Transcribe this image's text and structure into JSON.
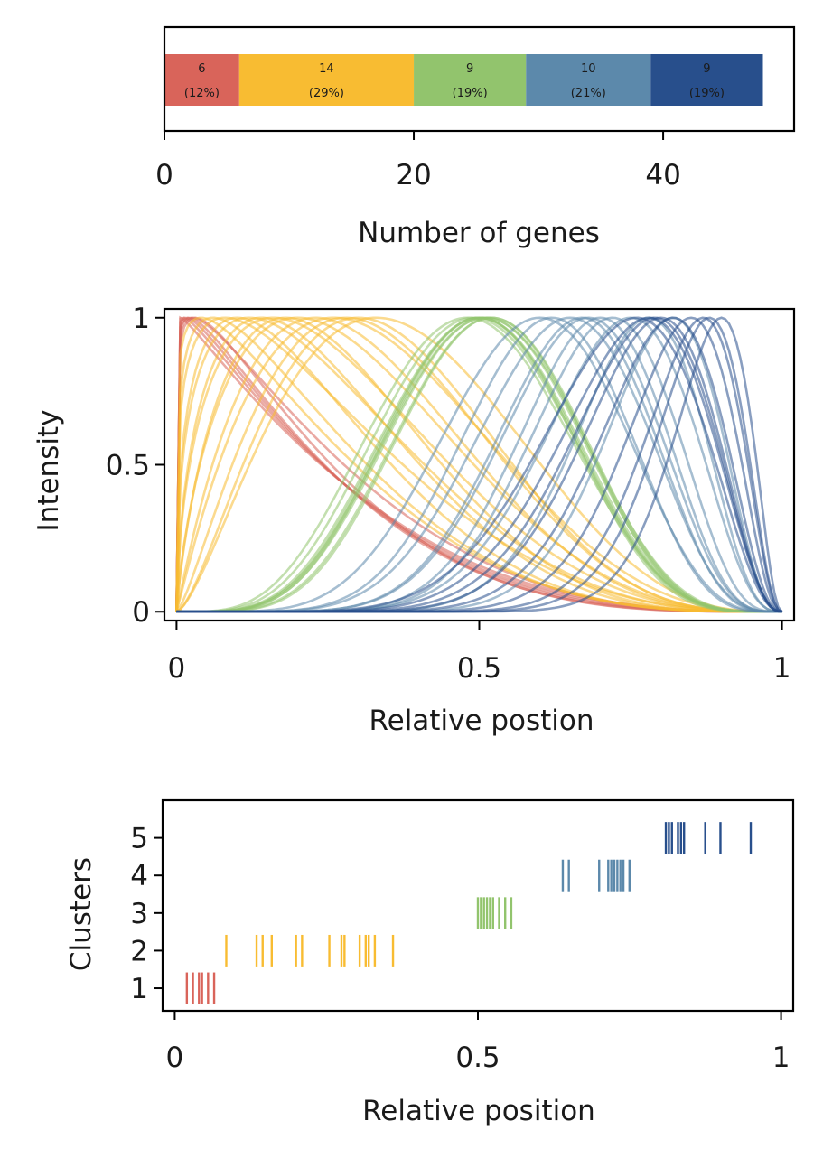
{
  "figure": {
    "panel_a": {
      "xlabel": "Number of genes",
      "ticks": [
        "0",
        "20",
        "40"
      ]
    },
    "panel_b": {
      "xlabel": "Relative postion",
      "ylabel": "Intensity",
      "xticks": [
        "0",
        "0.5",
        "1"
      ],
      "yticks": [
        "0",
        "0.5",
        "1"
      ]
    },
    "panel_c": {
      "xlabel": "Relative position",
      "ylabel": "Clusters",
      "xticks": [
        "0",
        "0.5",
        "1"
      ],
      "yticks": [
        "1",
        "2",
        "3",
        "4",
        "5"
      ]
    }
  },
  "chart_data": [
    {
      "type": "bar",
      "orientation": "horizontal-stacked",
      "xlabel": "Number of genes",
      "xlim": [
        0,
        50.5
      ],
      "xticks": [
        0,
        20,
        40
      ],
      "segments": [
        {
          "value": 6,
          "count_label": "6",
          "pct_label": "(12%)",
          "color": "#d9645a"
        },
        {
          "value": 14,
          "count_label": "14",
          "pct_label": "(29%)",
          "color": "#f8bc32"
        },
        {
          "value": 9,
          "count_label": "9",
          "pct_label": "(19%)",
          "color": "#92c46d"
        },
        {
          "value": 10,
          "count_label": "10",
          "pct_label": "(21%)",
          "color": "#5c89ab"
        },
        {
          "value": 9,
          "count_label": "9",
          "pct_label": "(19%)",
          "color": "#284f8c"
        }
      ]
    },
    {
      "type": "line",
      "xlabel": "Relative postion",
      "ylabel": "Intensity",
      "xlim": [
        -0.02,
        1.02
      ],
      "ylim": [
        -0.03,
        1.03
      ],
      "xticks": [
        0,
        0.5,
        1
      ],
      "yticks": [
        0,
        0.5,
        1
      ],
      "curve_model": "Intensity = (x/m)^(a*m) * ((1-x)/(1-m))^(a*(1-m)), peak at relative position m",
      "series": [
        {
          "color": "#d9645a",
          "peaks": [
            0.005,
            0.01,
            0.015,
            0.02,
            0.025,
            0.03
          ],
          "sharpness": [
            2.8,
            3.0,
            3.2,
            3.4,
            3.0,
            3.6
          ]
        },
        {
          "color": "#f8bc32",
          "peaks": [
            0.04,
            0.06,
            0.08,
            0.1,
            0.12,
            0.14,
            0.16,
            0.18,
            0.2,
            0.23,
            0.26,
            0.28,
            0.3,
            0.33
          ],
          "sharpness": [
            3.2,
            3.5,
            3.0,
            4.0,
            3.4,
            4.2,
            3.6,
            4.6,
            3.8,
            4.4,
            4.0,
            4.8,
            5.2,
            4.6
          ]
        },
        {
          "color": "#92c46d",
          "peaks": [
            0.48,
            0.49,
            0.5,
            0.5,
            0.5,
            0.51,
            0.51,
            0.52,
            0.52
          ],
          "sharpness": [
            8.6,
            9.0,
            9.4,
            9.8,
            10.2,
            9.2,
            9.6,
            10.0,
            10.4
          ]
        },
        {
          "color": "#5c89ab",
          "peaks": [
            0.6,
            0.62,
            0.65,
            0.67,
            0.68,
            0.7,
            0.72,
            0.75,
            0.78,
            0.82
          ],
          "sharpness": [
            10.0,
            12.0,
            11.0,
            13.0,
            12.5,
            14.0,
            13.5,
            12.0,
            15.0,
            16.0
          ]
        },
        {
          "color": "#284f8c",
          "peaks": [
            0.76,
            0.78,
            0.79,
            0.8,
            0.82,
            0.85,
            0.87,
            0.88,
            0.9
          ],
          "sharpness": [
            10.0,
            11.0,
            12.0,
            13.0,
            14.0,
            16.0,
            18.0,
            20.0,
            22.0
          ]
        }
      ]
    },
    {
      "type": "scatter",
      "marker": "vertical-tick",
      "xlabel": "Relative position",
      "ylabel": "Clusters",
      "xlim": [
        -0.02,
        1.02
      ],
      "ylim": [
        0.4,
        6.0
      ],
      "xticks": [
        0,
        0.5,
        1
      ],
      "yticks": [
        1,
        2,
        3,
        4,
        5
      ],
      "series": [
        {
          "cluster": 1,
          "color": "#d9645a",
          "x": [
            0.02,
            0.03,
            0.04,
            0.045,
            0.055,
            0.065
          ]
        },
        {
          "cluster": 2,
          "color": "#f8bc32",
          "x": [
            0.085,
            0.135,
            0.145,
            0.16,
            0.2,
            0.21,
            0.255,
            0.275,
            0.28,
            0.305,
            0.315,
            0.32,
            0.33,
            0.36
          ]
        },
        {
          "cluster": 3,
          "color": "#92c46d",
          "x": [
            0.5,
            0.505,
            0.51,
            0.515,
            0.52,
            0.525,
            0.535,
            0.545,
            0.555
          ]
        },
        {
          "cluster": 4,
          "color": "#5c89ab",
          "x": [
            0.64,
            0.65,
            0.7,
            0.715,
            0.72,
            0.725,
            0.73,
            0.735,
            0.74,
            0.75
          ]
        },
        {
          "cluster": 5,
          "color": "#284f8c",
          "x": [
            0.81,
            0.815,
            0.82,
            0.83,
            0.835,
            0.84,
            0.875,
            0.9,
            0.95
          ]
        }
      ]
    }
  ]
}
